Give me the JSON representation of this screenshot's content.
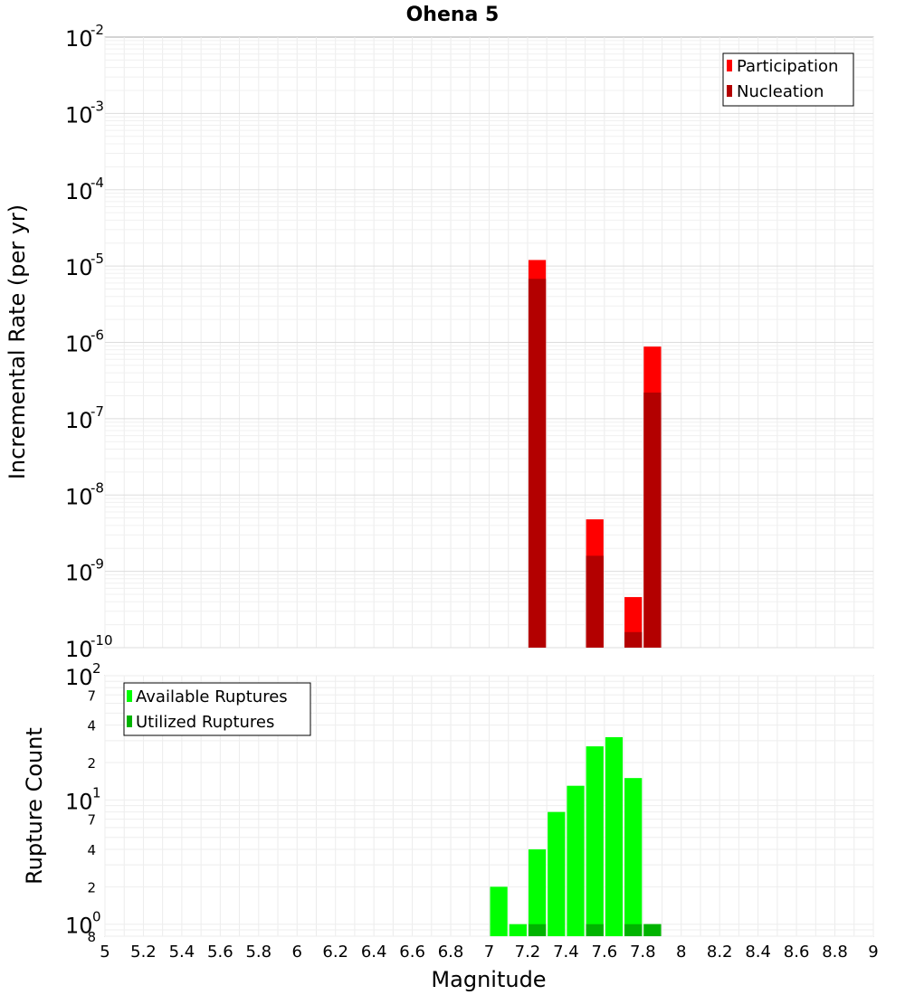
{
  "chart_data": [
    {
      "type": "bar",
      "panel": "top",
      "title": "Ohena 5",
      "ylabel": "Incremental Rate (per yr)",
      "xlabel": "",
      "yscale": "log",
      "ylim": [
        1e-10,
        0.01
      ],
      "xlim": [
        5,
        9
      ],
      "grid": true,
      "legend_position": "top-right",
      "y_ticks": [
        {
          "base": "10",
          "exp": "-2",
          "value": 0.01
        },
        {
          "base": "10",
          "exp": "-3",
          "value": 0.001
        },
        {
          "base": "10",
          "exp": "-4",
          "value": 0.0001
        },
        {
          "base": "10",
          "exp": "-5",
          "value": 1e-05
        },
        {
          "base": "10",
          "exp": "-6",
          "value": 1e-06
        },
        {
          "base": "10",
          "exp": "-7",
          "value": 1e-07
        },
        {
          "base": "10",
          "exp": "-8",
          "value": 1e-08
        },
        {
          "base": "10",
          "exp": "-9",
          "value": 1e-09
        },
        {
          "base": "10",
          "exp": "-10",
          "value": 1e-10
        }
      ],
      "series": [
        {
          "name": "Participation",
          "color": "#ff0000",
          "points": [
            {
              "x": 7.25,
              "y": 1.2e-05
            },
            {
              "x": 7.55,
              "y": 4.8e-09
            },
            {
              "x": 7.75,
              "y": 4.6e-10
            },
            {
              "x": 7.85,
              "y": 8.8e-07
            }
          ]
        },
        {
          "name": "Nucleation",
          "color": "#b30000",
          "points": [
            {
              "x": 7.25,
              "y": 6.8e-06
            },
            {
              "x": 7.55,
              "y": 1.6e-09
            },
            {
              "x": 7.75,
              "y": 1.6e-10
            },
            {
              "x": 7.85,
              "y": 2.2e-07
            }
          ]
        }
      ]
    },
    {
      "type": "bar",
      "panel": "bottom",
      "title": "",
      "ylabel": "Rupture Count",
      "xlabel": "Magnitude",
      "yscale": "log",
      "ylim": [
        0.8,
        100
      ],
      "xlim": [
        5,
        9
      ],
      "grid": true,
      "legend_position": "top-left",
      "x_ticks": [
        "5",
        "5.2",
        "5.4",
        "5.6",
        "5.8",
        "6",
        "6.2",
        "6.4",
        "6.6",
        "6.8",
        "7",
        "7.2",
        "7.4",
        "7.6",
        "7.8",
        "8",
        "8.2",
        "8.4",
        "8.6",
        "8.8",
        "9"
      ],
      "y_major_ticks": [
        {
          "base": "10",
          "exp": "2",
          "value": 100
        },
        {
          "base": "10",
          "exp": "1",
          "value": 10
        },
        {
          "base": "10",
          "exp": "0",
          "value": 1
        }
      ],
      "y_minor_ticks": [
        {
          "label": "7",
          "value": 70
        },
        {
          "label": "4",
          "value": 40
        },
        {
          "label": "2",
          "value": 20
        },
        {
          "label": "7",
          "value": 7
        },
        {
          "label": "4",
          "value": 4
        },
        {
          "label": "2",
          "value": 2
        },
        {
          "label": "8",
          "value": 0.8
        }
      ],
      "series": [
        {
          "name": "Available Ruptures",
          "color": "#00ff00",
          "points": [
            {
              "x": 7.05,
              "y": 2
            },
            {
              "x": 7.15,
              "y": 1
            },
            {
              "x": 7.25,
              "y": 4
            },
            {
              "x": 7.35,
              "y": 8
            },
            {
              "x": 7.45,
              "y": 13
            },
            {
              "x": 7.55,
              "y": 27
            },
            {
              "x": 7.65,
              "y": 32
            },
            {
              "x": 7.75,
              "y": 15
            },
            {
              "x": 7.85,
              "y": 1
            }
          ]
        },
        {
          "name": "Utilized Ruptures",
          "color": "#00b300",
          "points": [
            {
              "x": 7.25,
              "y": 1
            },
            {
              "x": 7.55,
              "y": 1
            },
            {
              "x": 7.75,
              "y": 1
            },
            {
              "x": 7.85,
              "y": 1
            }
          ]
        }
      ]
    }
  ]
}
